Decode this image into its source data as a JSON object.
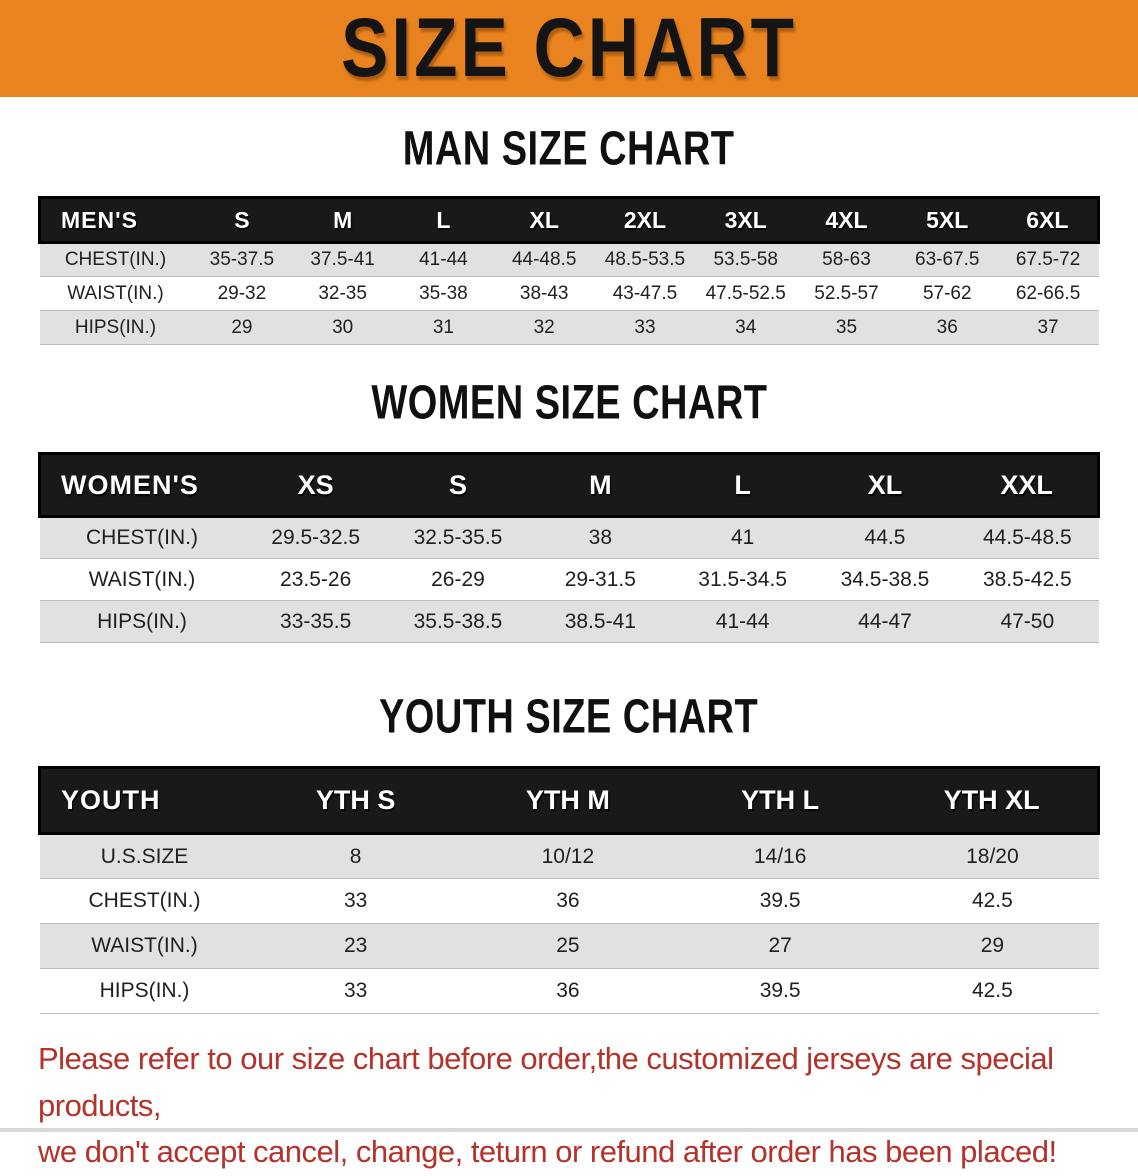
{
  "banner": {
    "title": "SIZE CHART",
    "bg_color": "#E8831F",
    "text_color": "#141414"
  },
  "sections": [
    {
      "title": "MAN SIZE CHART",
      "table": {
        "corner": "MEN'S",
        "columns": [
          "S",
          "M",
          "L",
          "XL",
          "2XL",
          "3XL",
          "4XL",
          "5XL",
          "6XL"
        ],
        "rows": [
          {
            "label": "CHEST(IN.)",
            "values": [
              "35-37.5",
              "37.5-41",
              "41-44",
              "44-48.5",
              "48.5-53.5",
              "53.5-58",
              "58-63",
              "63-67.5",
              "67.5-72"
            ]
          },
          {
            "label": "WAIST(IN.)",
            "values": [
              "29-32",
              "32-35",
              "35-38",
              "38-43",
              "43-47.5",
              "47.5-52.5",
              "52.5-57",
              "57-62",
              "62-66.5"
            ]
          },
          {
            "label": "HIPS(IN.)",
            "values": [
              "29",
              "30",
              "31",
              "32",
              "33",
              "34",
              "35",
              "36",
              "37"
            ]
          }
        ]
      }
    },
    {
      "title": "WOMEN SIZE CHART",
      "table": {
        "corner": "WOMEN'S",
        "columns": [
          "XS",
          "S",
          "M",
          "L",
          "XL",
          "XXL"
        ],
        "rows": [
          {
            "label": "CHEST(IN.)",
            "values": [
              "29.5-32.5",
              "32.5-35.5",
              "38",
              "41",
              "44.5",
              "44.5-48.5"
            ]
          },
          {
            "label": "WAIST(IN.)",
            "values": [
              "23.5-26",
              "26-29",
              "29-31.5",
              "31.5-34.5",
              "34.5-38.5",
              "38.5-42.5"
            ]
          },
          {
            "label": "HIPS(IN.)",
            "values": [
              "33-35.5",
              "35.5-38.5",
              "38.5-41",
              "41-44",
              "44-47",
              "47-50"
            ]
          }
        ]
      }
    },
    {
      "title": "YOUTH SIZE CHART",
      "table": {
        "corner": "YOUTH",
        "columns": [
          "YTH S",
          "YTH M",
          "YTH L",
          "YTH XL"
        ],
        "rows": [
          {
            "label": "U.S.SIZE",
            "values": [
              "8",
              "10/12",
              "14/16",
              "18/20"
            ]
          },
          {
            "label": "CHEST(IN.)",
            "values": [
              "33",
              "36",
              "39.5",
              "42.5"
            ]
          },
          {
            "label": "WAIST(IN.)",
            "values": [
              "23",
              "25",
              "27",
              "29"
            ]
          },
          {
            "label": "HIPS(IN.)",
            "values": [
              "33",
              "36",
              "39.5",
              "42.5"
            ]
          }
        ]
      }
    }
  ],
  "disclaimer": {
    "lines": [
      "Please refer to our size chart before order,the customized jerseys are special products,",
      "we don't accept cancel, change, teturn or refund after order has been placed!"
    ],
    "text_color": "#B5322A"
  }
}
